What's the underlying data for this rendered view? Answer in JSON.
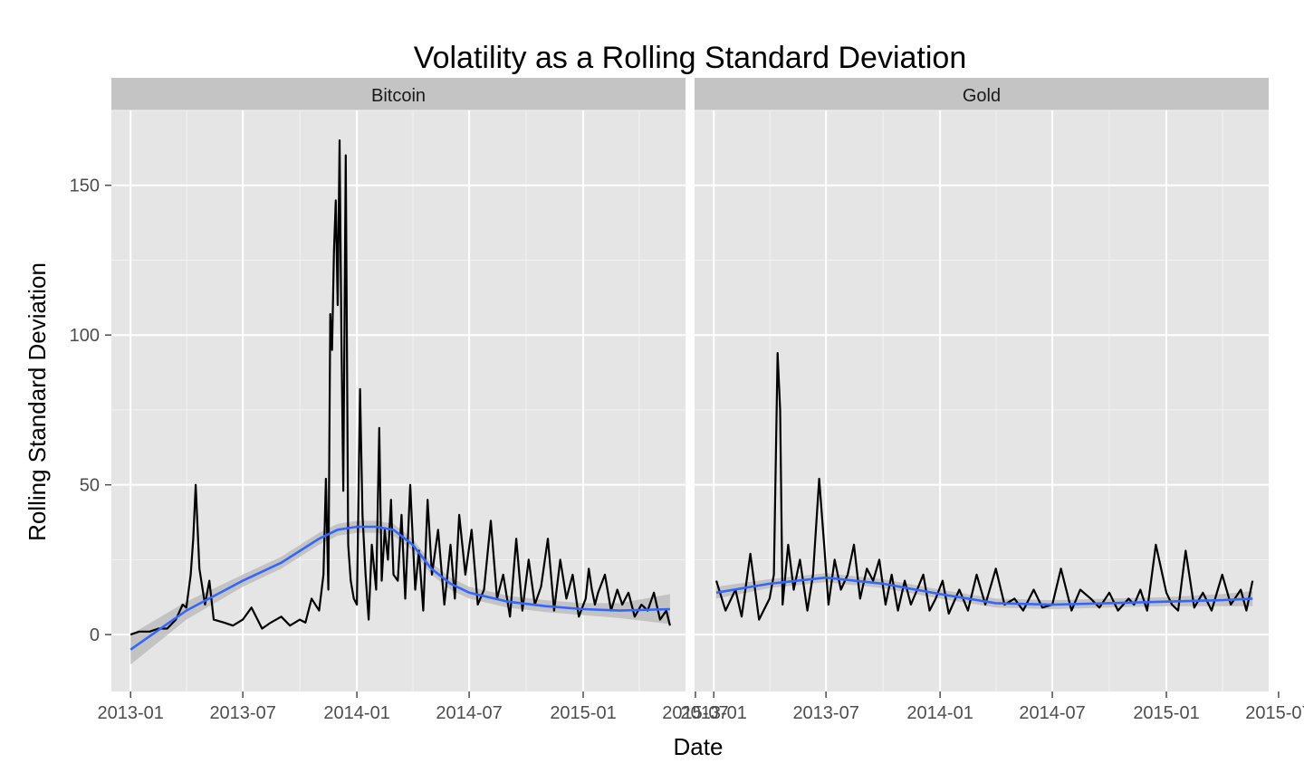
{
  "chart_data": {
    "type": "line",
    "title": "Volatility as a Rolling Standard Deviation",
    "xlabel": "Date",
    "ylabel": "Rolling Standard Deviation",
    "xlim": [
      "2012-12-01",
      "2015-06-15"
    ],
    "ylim": [
      -19,
      175
    ],
    "y_ticks": [
      0,
      50,
      100,
      150
    ],
    "x_ticks": [
      "2013-01",
      "2013-07",
      "2014-01",
      "2014-07",
      "2015-01",
      "2015-07"
    ],
    "grid": true,
    "smoother": {
      "color": "#3366ff",
      "band_color": "#bdbdbd"
    },
    "panels": [
      {
        "name": "Bitcoin",
        "series": [
          {
            "type": "line",
            "color": "#000000",
            "x": [
              "2013-01-01",
              "2013-01-15",
              "2013-02-01",
              "2013-02-15",
              "2013-03-01",
              "2013-03-15",
              "2013-03-26",
              "2013-04-01",
              "2013-04-08",
              "2013-04-12",
              "2013-04-16",
              "2013-04-22",
              "2013-05-01",
              "2013-05-08",
              "2013-05-15",
              "2013-06-01",
              "2013-06-15",
              "2013-07-01",
              "2013-07-15",
              "2013-08-01",
              "2013-08-15",
              "2013-09-01",
              "2013-09-15",
              "2013-10-01",
              "2013-10-10",
              "2013-10-20",
              "2013-11-01",
              "2013-11-08",
              "2013-11-12",
              "2013-11-16",
              "2013-11-19",
              "2013-11-22",
              "2013-11-25",
              "2013-11-28",
              "2013-12-01",
              "2013-12-04",
              "2013-12-07",
              "2013-12-10",
              "2013-12-14",
              "2013-12-18",
              "2013-12-22",
              "2013-12-27",
              "2014-01-01",
              "2014-01-06",
              "2014-01-10",
              "2014-01-15",
              "2014-01-20",
              "2014-01-25",
              "2014-02-01",
              "2014-02-06",
              "2014-02-10",
              "2014-02-15",
              "2014-02-20",
              "2014-02-25",
              "2014-03-01",
              "2014-03-08",
              "2014-03-14",
              "2014-03-20",
              "2014-03-28",
              "2014-04-05",
              "2014-04-11",
              "2014-04-18",
              "2014-04-25",
              "2014-05-02",
              "2014-05-12",
              "2014-05-22",
              "2014-06-01",
              "2014-06-08",
              "2014-06-15",
              "2014-06-25",
              "2014-07-05",
              "2014-07-15",
              "2014-07-25",
              "2014-08-05",
              "2014-08-15",
              "2014-08-25",
              "2014-09-05",
              "2014-09-15",
              "2014-09-25",
              "2014-10-05",
              "2014-10-15",
              "2014-10-25",
              "2014-11-05",
              "2014-11-15",
              "2014-11-25",
              "2014-12-05",
              "2014-12-15",
              "2014-12-25",
              "2015-01-05",
              "2015-01-10",
              "2015-01-15",
              "2015-01-20",
              "2015-01-25",
              "2015-02-05",
              "2015-02-15",
              "2015-02-25",
              "2015-03-05",
              "2015-03-15",
              "2015-03-25",
              "2015-04-05",
              "2015-04-15",
              "2015-04-25",
              "2015-05-05",
              "2015-05-15",
              "2015-05-21"
            ],
            "values": [
              0,
              1,
              1,
              2,
              2,
              5,
              10,
              9,
              20,
              32,
              50,
              22,
              10,
              18,
              5,
              4,
              3,
              5,
              9,
              2,
              4,
              6,
              3,
              5,
              4,
              12,
              8,
              20,
              52,
              15,
              107,
              95,
              128,
              145,
              110,
              165,
              100,
              48,
              160,
              30,
              18,
              12,
              10,
              82,
              40,
              20,
              5,
              30,
              15,
              69,
              18,
              35,
              25,
              45,
              20,
              18,
              40,
              12,
              50,
              15,
              28,
              8,
              45,
              20,
              35,
              10,
              30,
              12,
              40,
              20,
              35,
              10,
              15,
              38,
              12,
              20,
              6,
              32,
              8,
              25,
              10,
              16,
              32,
              8,
              25,
              12,
              20,
              6,
              12,
              22,
              15,
              10,
              14,
              20,
              8,
              15,
              10,
              14,
              6,
              10,
              8,
              14,
              5,
              8,
              3
            ]
          }
        ],
        "smooth": {
          "x": [
            "2013-01-01",
            "2013-04-01",
            "2013-07-01",
            "2013-09-01",
            "2013-11-01",
            "2013-12-01",
            "2014-01-01",
            "2014-02-01",
            "2014-03-01",
            "2014-04-01",
            "2014-05-01",
            "2014-06-01",
            "2014-07-01",
            "2014-09-01",
            "2014-11-01",
            "2015-01-01",
            "2015-03-01",
            "2015-05-21"
          ],
          "values": [
            -5,
            8,
            18,
            24,
            32,
            35,
            36,
            36,
            35,
            30,
            22,
            17,
            14,
            11,
            9.5,
            8.5,
            8,
            8.5
          ],
          "band_lower": [
            -10,
            5,
            16,
            22,
            30,
            33,
            34,
            34,
            33,
            28,
            20,
            15,
            12,
            9,
            7.5,
            6.5,
            5.5,
            3.5
          ],
          "band_upper": [
            0,
            11,
            20,
            26,
            34,
            37,
            38,
            38,
            37,
            32,
            24,
            19,
            16,
            13,
            11.5,
            10.5,
            10.5,
            13.5
          ]
        }
      },
      {
        "name": "Gold",
        "series": [
          {
            "type": "line",
            "color": "#000000",
            "x": [
              "2013-01-05",
              "2013-01-20",
              "2013-02-05",
              "2013-02-15",
              "2013-03-01",
              "2013-03-15",
              "2013-04-01",
              "2013-04-08",
              "2013-04-14",
              "2013-04-18",
              "2013-04-22",
              "2013-05-01",
              "2013-05-10",
              "2013-05-20",
              "2013-06-01",
              "2013-06-10",
              "2013-06-20",
              "2013-06-28",
              "2013-07-05",
              "2013-07-15",
              "2013-07-25",
              "2013-08-05",
              "2013-08-15",
              "2013-08-25",
              "2013-09-05",
              "2013-09-15",
              "2013-09-25",
              "2013-10-05",
              "2013-10-15",
              "2013-10-25",
              "2013-11-05",
              "2013-11-15",
              "2013-11-25",
              "2013-12-05",
              "2013-12-15",
              "2013-12-25",
              "2014-01-05",
              "2014-01-15",
              "2014-02-01",
              "2014-02-15",
              "2014-03-01",
              "2014-03-15",
              "2014-04-01",
              "2014-04-15",
              "2014-05-01",
              "2014-05-15",
              "2014-06-01",
              "2014-06-15",
              "2014-07-01",
              "2014-07-15",
              "2014-08-01",
              "2014-08-15",
              "2014-09-01",
              "2014-09-15",
              "2014-10-01",
              "2014-10-15",
              "2014-11-01",
              "2014-11-10",
              "2014-11-20",
              "2014-12-01",
              "2014-12-15",
              "2015-01-01",
              "2015-01-10",
              "2015-01-20",
              "2015-02-01",
              "2015-02-15",
              "2015-03-01",
              "2015-03-15",
              "2015-04-01",
              "2015-04-15",
              "2015-05-01",
              "2015-05-10",
              "2015-05-20"
            ],
            "values": [
              18,
              8,
              15,
              6,
              27,
              5,
              12,
              20,
              94,
              75,
              10,
              30,
              15,
              25,
              8,
              20,
              52,
              30,
              10,
              25,
              15,
              20,
              30,
              12,
              22,
              18,
              25,
              10,
              20,
              8,
              18,
              10,
              15,
              20,
              8,
              12,
              18,
              7,
              15,
              8,
              20,
              10,
              22,
              10,
              12,
              8,
              15,
              9,
              10,
              22,
              8,
              15,
              12,
              9,
              14,
              8,
              12,
              10,
              15,
              8,
              30,
              14,
              10,
              8,
              28,
              9,
              14,
              8,
              20,
              10,
              15,
              8,
              18
            ]
          }
        ],
        "smooth": {
          "x": [
            "2013-01-05",
            "2013-04-01",
            "2013-07-01",
            "2013-10-01",
            "2014-01-01",
            "2014-04-01",
            "2014-07-01",
            "2014-10-01",
            "2015-01-01",
            "2015-04-01",
            "2015-05-20"
          ],
          "values": [
            14,
            17,
            19,
            17,
            13.5,
            10.5,
            10,
            10.5,
            11,
            11.5,
            12
          ],
          "band_lower": [
            12,
            15.5,
            17.5,
            15.5,
            12,
            9,
            8.5,
            9,
            9.5,
            9.5,
            9.5
          ],
          "band_upper": [
            16,
            18.5,
            20.5,
            18.5,
            15,
            12,
            11.5,
            12,
            12.5,
            13.5,
            14.5
          ]
        }
      }
    ]
  }
}
